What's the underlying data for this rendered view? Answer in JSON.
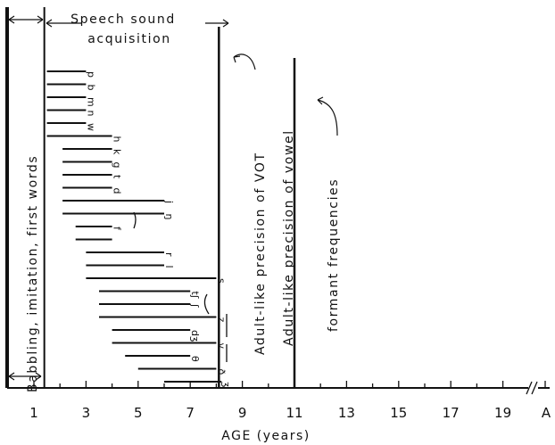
{
  "chart_data": {
    "type": "range-bar",
    "xlabel": "AGE (years)",
    "x_ticks": [
      "1",
      "3",
      "5",
      "7",
      "9",
      "11",
      "13",
      "15",
      "17",
      "19"
    ],
    "x_unit_label": "A",
    "xlim": [
      0,
      20
    ],
    "bands": {
      "babbling": "Babbling, imitation, first words",
      "speech_sound": "Speech sound acquisition",
      "vot": "Adult-like precision of VOT",
      "vowel_line1": "Adult-like precision of vowel",
      "vowel_line2": "formant frequencies"
    },
    "band_boundaries": {
      "babbling_end": 1.4,
      "vot": 8.1,
      "vowel": 11.0
    },
    "bars": [
      {
        "label": "p",
        "start": 1.5,
        "end": 3.0
      },
      {
        "label": "b",
        "start": 1.5,
        "end": 3.0
      },
      {
        "label": "m",
        "start": 1.5,
        "end": 3.0
      },
      {
        "label": "n",
        "start": 1.5,
        "end": 3.0
      },
      {
        "label": "w",
        "start": 1.5,
        "end": 3.0
      },
      {
        "label": "h",
        "start": 1.5,
        "end": 4.0
      },
      {
        "label": "k",
        "start": 2.1,
        "end": 4.0
      },
      {
        "label": "g",
        "start": 2.1,
        "end": 4.0
      },
      {
        "label": "t",
        "start": 2.1,
        "end": 4.0
      },
      {
        "label": "d",
        "start": 2.1,
        "end": 4.0
      },
      {
        "label": "j",
        "start": 2.1,
        "end": 6.0
      },
      {
        "label": "ŋ",
        "start": 2.1,
        "end": 6.0
      },
      {
        "label": "f",
        "start": 2.6,
        "end": 4.0
      },
      {
        "label": "",
        "start": 2.6,
        "end": 4.0
      },
      {
        "label": "r",
        "start": 3.0,
        "end": 6.0
      },
      {
        "label": "l",
        "start": 3.0,
        "end": 6.0
      },
      {
        "label": "s",
        "start": 3.0,
        "end": 8.0
      },
      {
        "label": "tʃ",
        "start": 3.5,
        "end": 7.0
      },
      {
        "label": "ʃ",
        "start": 3.5,
        "end": 7.0
      },
      {
        "label": "z",
        "start": 3.5,
        "end": 8.0
      },
      {
        "label": "dʒ",
        "start": 4.0,
        "end": 7.0
      },
      {
        "label": "v",
        "start": 4.0,
        "end": 8.0
      },
      {
        "label": "θ",
        "start": 4.5,
        "end": 7.0
      },
      {
        "label": "ð",
        "start": 5.0,
        "end": 8.0
      },
      {
        "label": "ʒ",
        "start": 6.0,
        "end": 8.2
      }
    ]
  }
}
